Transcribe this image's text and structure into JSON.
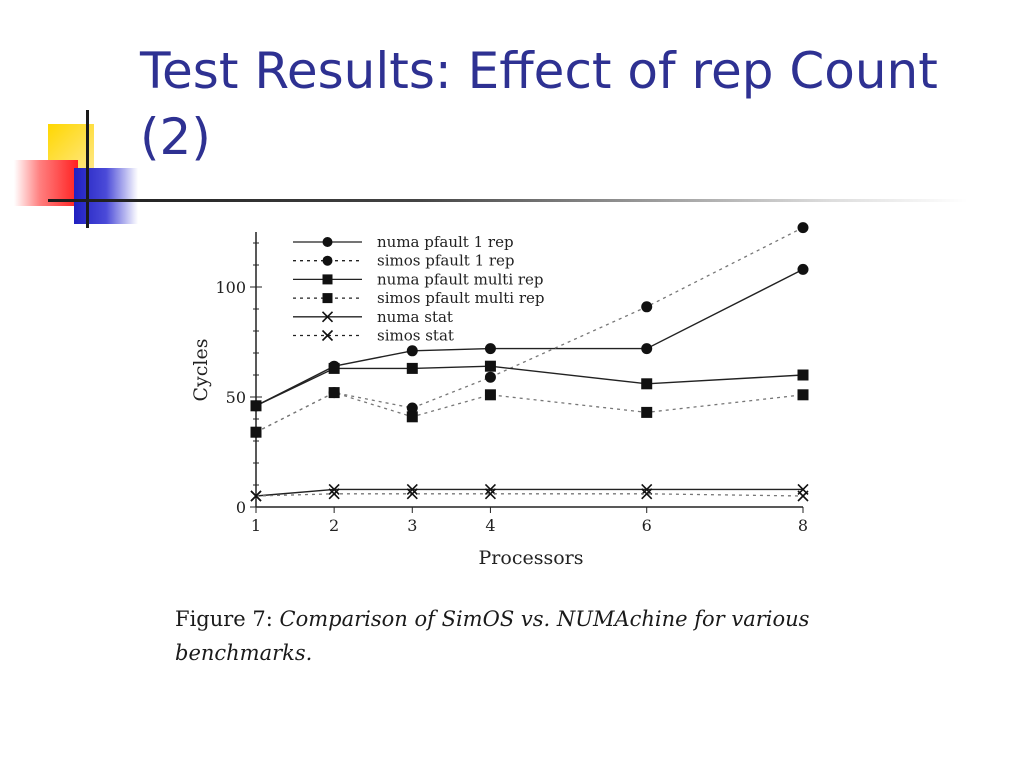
{
  "slide": {
    "title": "Test Results: Effect of rep Count (2)"
  },
  "caption": {
    "label": "Figure 7:",
    "text": "Comparison of SimOS vs. NUMAchine for various benchmarks."
  },
  "chart_data": {
    "type": "line",
    "xlabel": "Processors",
    "ylabel": "Cycles",
    "x": [
      1,
      2,
      3,
      4,
      6,
      8
    ],
    "xticks": [
      "1",
      "2",
      "3",
      "4",
      "6",
      "8"
    ],
    "ylim": [
      0,
      125
    ],
    "yticks": [
      "0",
      "50",
      "100"
    ],
    "legend_position": "top-left",
    "grid": false,
    "series": [
      {
        "name": "numa pfault 1 rep",
        "values": [
          46,
          64,
          71,
          72,
          72,
          108
        ],
        "marker": "circle",
        "line": "solid"
      },
      {
        "name": "simos pfault 1 rep",
        "values": [
          34,
          52,
          45,
          59,
          91,
          127
        ],
        "marker": "circle",
        "line": "dashed"
      },
      {
        "name": "numa pfault multi rep",
        "values": [
          46,
          63,
          63,
          64,
          56,
          60
        ],
        "marker": "square",
        "line": "solid"
      },
      {
        "name": "simos pfault multi rep",
        "values": [
          34,
          52,
          41,
          51,
          43,
          51
        ],
        "marker": "square",
        "line": "dashed"
      },
      {
        "name": "numa stat",
        "values": [
          5,
          8,
          8,
          8,
          8,
          8
        ],
        "marker": "x",
        "line": "solid"
      },
      {
        "name": "simos stat",
        "values": [
          5,
          6,
          6,
          6,
          6,
          5
        ],
        "marker": "x",
        "line": "dashed"
      }
    ]
  }
}
